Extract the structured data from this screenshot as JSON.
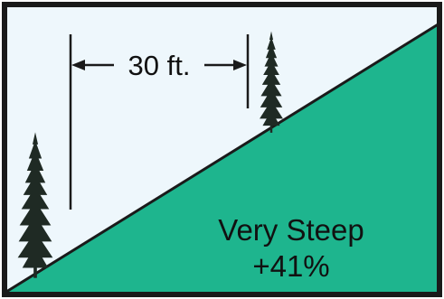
{
  "colors": {
    "sky": "#eef7fc",
    "slope_fill": "#1eb58e",
    "outline": "#1a1a1a",
    "tree": "#1f2a24",
    "text": "#111111"
  },
  "measurement": {
    "label": "30 ft."
  },
  "slope": {
    "label_line1": "Very Steep",
    "label_line2": "+41%"
  },
  "icons": {
    "left_tree": "conifer-tree-icon",
    "right_tree": "conifer-tree-icon"
  }
}
